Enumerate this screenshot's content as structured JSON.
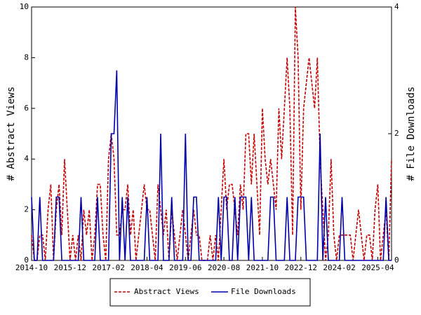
{
  "chart_data": {
    "type": "line",
    "x": [
      "2014-10",
      "2014-11",
      "2014-12",
      "2015-01",
      "2015-02",
      "2015-03",
      "2015-04",
      "2015-05",
      "2015-06",
      "2015-07",
      "2015-08",
      "2015-09",
      "2015-10",
      "2015-11",
      "2015-12",
      "2016-01",
      "2016-02",
      "2016-03",
      "2016-04",
      "2016-05",
      "2016-06",
      "2016-07",
      "2016-08",
      "2016-09",
      "2016-10",
      "2016-11",
      "2016-12",
      "2017-01",
      "2017-02",
      "2017-03",
      "2017-04",
      "2017-05",
      "2017-06",
      "2017-07",
      "2017-08",
      "2017-09",
      "2017-10",
      "2017-11",
      "2017-12",
      "2018-01",
      "2018-02",
      "2018-03",
      "2018-04",
      "2018-05",
      "2018-06",
      "2018-07",
      "2018-08",
      "2018-09",
      "2018-10",
      "2018-11",
      "2018-12",
      "2019-01",
      "2019-02",
      "2019-03",
      "2019-04",
      "2019-05",
      "2019-06",
      "2019-07",
      "2019-08",
      "2019-09",
      "2019-10",
      "2019-11",
      "2019-12",
      "2020-01",
      "2020-02",
      "2020-03",
      "2020-04",
      "2020-05",
      "2020-06",
      "2020-07",
      "2020-08",
      "2020-09",
      "2020-10",
      "2020-11",
      "2020-12",
      "2021-01",
      "2021-02",
      "2021-03",
      "2021-04",
      "2021-05",
      "2021-06",
      "2021-07",
      "2021-08",
      "2021-09",
      "2021-10",
      "2021-11",
      "2021-12",
      "2022-01",
      "2022-02",
      "2022-03",
      "2022-04",
      "2022-05",
      "2022-06",
      "2022-07",
      "2022-08",
      "2022-09",
      "2022-10",
      "2022-11",
      "2022-12",
      "2023-01",
      "2023-02",
      "2023-03",
      "2023-04",
      "2023-05",
      "2023-06",
      "2023-07",
      "2023-08",
      "2023-09",
      "2023-10",
      "2023-11",
      "2023-12",
      "2024-01",
      "2024-02",
      "2024-03",
      "2024-04",
      "2024-05",
      "2024-06",
      "2024-07",
      "2024-08",
      "2024-09",
      "2024-10",
      "2024-11",
      "2024-12",
      "2025-01",
      "2025-02",
      "2025-03",
      "2025-04",
      "2025-05",
      "2025-06",
      "2025-07",
      "2025-08",
      "2025-09"
    ],
    "xticks": [
      "2014-10",
      "2015-12",
      "2017-02",
      "2018-04",
      "2019-06",
      "2020-08",
      "2021-10",
      "2022-12",
      "2024-02",
      "2025-04"
    ],
    "ylabel": "# Abstract Views",
    "y2label": "# File Downloads",
    "ylim": [
      0,
      10
    ],
    "yticks": [
      0,
      2,
      4,
      6,
      8,
      10
    ],
    "y2lim": [
      0,
      4
    ],
    "y2ticks": [
      0,
      2,
      4
    ],
    "legend": "bottom",
    "series": [
      {
        "name": "Abstract Views",
        "color": "#cc0000",
        "dash": true,
        "values": [
          1,
          0,
          0,
          1,
          1,
          0,
          2,
          3,
          0,
          2,
          3,
          1,
          4,
          2,
          0,
          1,
          0,
          1,
          0,
          2,
          1,
          2,
          0,
          1,
          3,
          3,
          1,
          0,
          4,
          5,
          4,
          1,
          1,
          2,
          2,
          3,
          1,
          2,
          0,
          1,
          2,
          3,
          2,
          2,
          1,
          0,
          3,
          2,
          1,
          2,
          0,
          2,
          1,
          0,
          1,
          2,
          1,
          0,
          1,
          2,
          1,
          1,
          0,
          0,
          0,
          1,
          0,
          1,
          0,
          2,
          4,
          2,
          3,
          3,
          2,
          1,
          3,
          2,
          5,
          5,
          3,
          5,
          3,
          1,
          6,
          4,
          3,
          4,
          3,
          2,
          6,
          4,
          6,
          8,
          6,
          1,
          10,
          8,
          2,
          6,
          7,
          8,
          7,
          6,
          8,
          4,
          2,
          0,
          1,
          4,
          1,
          0,
          1,
          1,
          1,
          1,
          1,
          0,
          1,
          2,
          1,
          0,
          1,
          1,
          0,
          2,
          3,
          0,
          1,
          2,
          0,
          4
        ]
      },
      {
        "name": "File Downloads",
        "color": "#0000aa",
        "axis": "y2",
        "values": [
          1,
          0,
          0,
          1,
          0,
          0,
          0,
          0,
          0,
          1,
          1,
          0,
          0,
          0,
          0,
          0,
          0,
          0,
          1,
          0,
          0,
          0,
          0,
          0,
          1,
          0,
          0,
          0,
          0,
          2,
          2,
          3,
          0,
          1,
          0,
          1,
          0,
          0,
          0,
          0,
          0,
          0,
          1,
          0,
          0,
          0,
          0,
          2,
          0,
          0,
          0,
          1,
          0,
          0,
          0,
          0,
          2,
          0,
          0,
          1,
          1,
          0,
          0,
          0,
          0,
          0,
          0,
          0,
          1,
          0,
          1,
          1,
          0,
          0,
          1,
          0,
          1,
          1,
          1,
          0,
          1,
          0,
          0,
          0,
          0,
          0,
          0,
          1,
          1,
          0,
          0,
          0,
          0,
          1,
          0,
          0,
          0,
          1,
          1,
          1,
          0,
          0,
          0,
          0,
          0,
          2,
          0,
          1,
          0,
          0,
          0,
          0,
          0,
          1,
          0,
          0,
          0,
          0,
          0,
          0,
          0,
          0,
          0,
          0,
          0,
          0,
          0,
          0,
          0,
          1,
          0,
          0
        ]
      }
    ]
  }
}
